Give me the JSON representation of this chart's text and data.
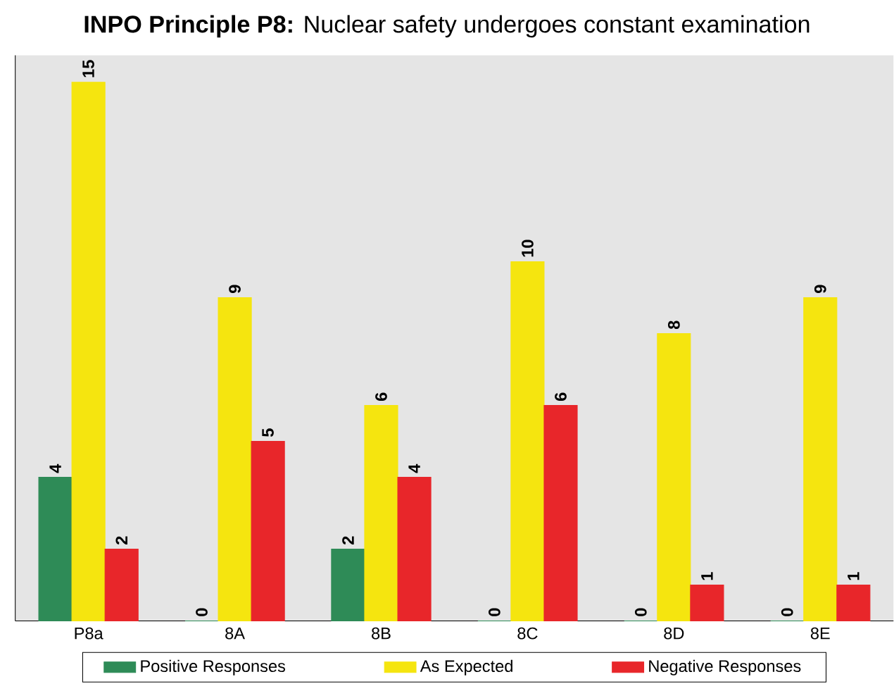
{
  "chart_data": {
    "type": "bar",
    "title": "**INPO Principle P8:**  Nuclear safety undergoes constant examination",
    "categories": [
      "P8a",
      "8A",
      "8B",
      "8C",
      "8D",
      "8E"
    ],
    "series": [
      {
        "name": "Positive Responses",
        "color": "#2e8b57",
        "values": [
          4,
          0,
          2,
          0,
          0,
          0
        ]
      },
      {
        "name": "As Expected",
        "color": "#f5e50f",
        "values": [
          15,
          9,
          6,
          10,
          8,
          9
        ]
      },
      {
        "name": "Negative Responses",
        "color": "#e8262a",
        "values": [
          2,
          5,
          4,
          6,
          1,
          1
        ]
      }
    ],
    "data_labels": true,
    "legend": "bottom"
  }
}
